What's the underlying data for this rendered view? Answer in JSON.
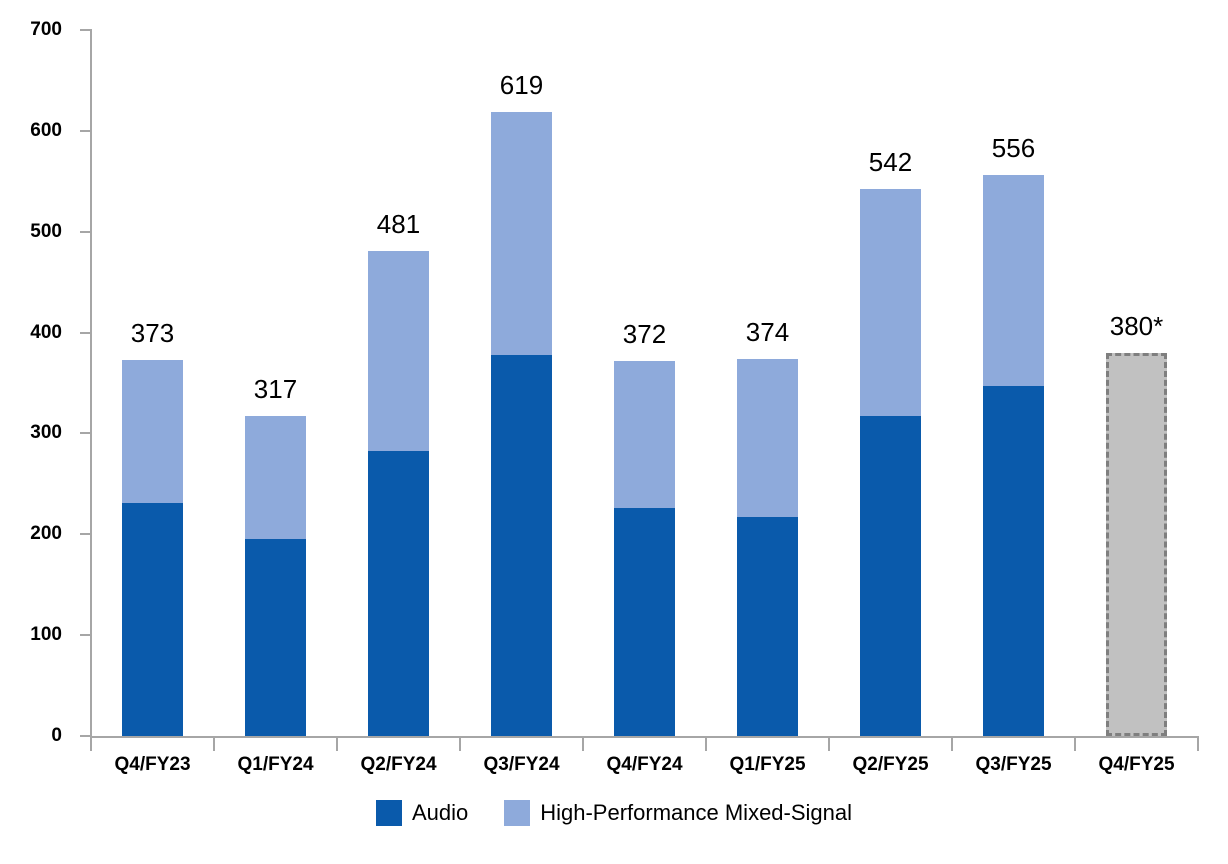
{
  "chart_data": {
    "type": "bar",
    "stacked": true,
    "title": "",
    "xlabel": "",
    "ylabel": "",
    "ylim": [
      0,
      700
    ],
    "yticks": [
      0,
      100,
      200,
      300,
      400,
      500,
      600,
      700
    ],
    "grid": false,
    "legend_position": "bottom",
    "categories": [
      "Q4/FY23",
      "Q1/FY24",
      "Q2/FY24",
      "Q3/FY24",
      "Q4/FY24",
      "Q1/FY25",
      "Q2/FY25",
      "Q3/FY25",
      "Q4/FY25"
    ],
    "series": [
      {
        "name": "Audio",
        "values": [
          231,
          195,
          283,
          378,
          226,
          217,
          317,
          347
        ]
      },
      {
        "name": "High-Performance Mixed-Signal",
        "values": [
          142,
          122,
          198,
          241,
          146,
          157,
          225,
          209
        ]
      }
    ],
    "forecast": {
      "category": "Q4/FY25",
      "value": 380,
      "label": "380*"
    },
    "totals_labels": [
      "373",
      "317",
      "481",
      "619",
      "372",
      "374",
      "542",
      "556",
      "380*"
    ],
    "legend": [
      "Audio",
      "High-Performance Mixed-Signal"
    ],
    "colors": {
      "audio": "#0a5aab",
      "hpms": "#8eaadb",
      "forecast_fill": "#c1c1c1",
      "forecast_border": "#7f7f7f",
      "axis": "#a6a6a6",
      "text": "#000000"
    }
  }
}
